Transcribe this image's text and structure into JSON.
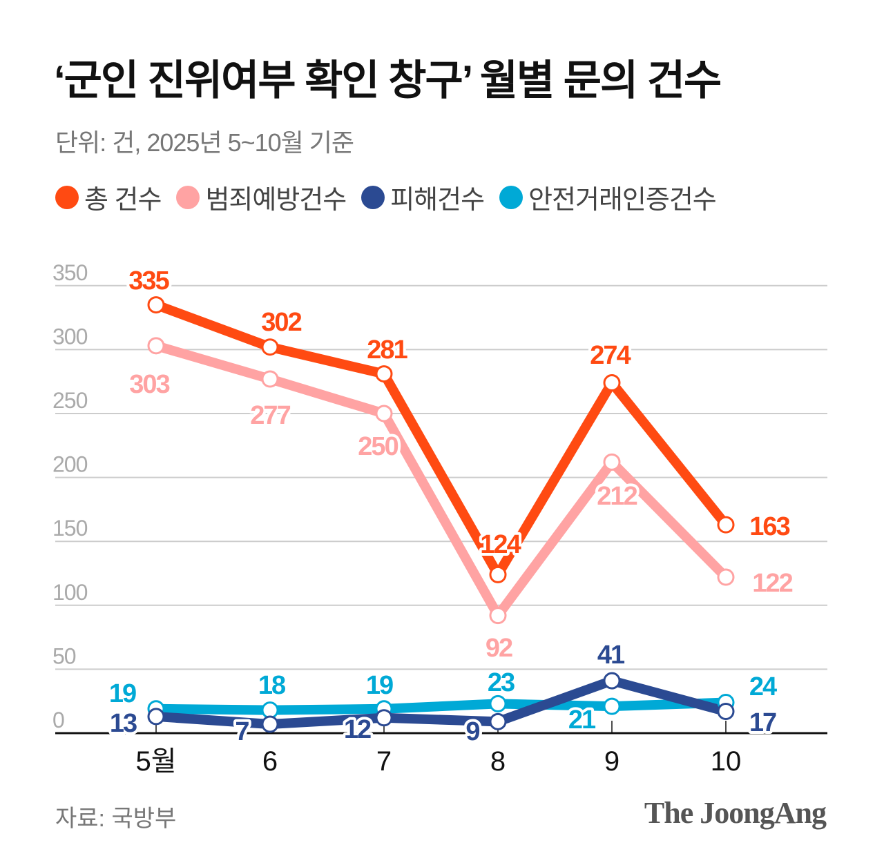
{
  "chart_data": {
    "type": "line",
    "title": "‘군인 진위여부 확인 창구’ 월별 문의 건수",
    "subtitle": "단위: 건, 2025년 5~10월 기준",
    "categories": [
      "5월",
      "6",
      "7",
      "8",
      "9",
      "10"
    ],
    "yticks": [
      "0",
      "50",
      "100",
      "150",
      "200",
      "250",
      "300",
      "350"
    ],
    "ylim": [
      0,
      350
    ],
    "grid": true,
    "legend_position": "top-left",
    "series": [
      {
        "name": "총 건수",
        "color": "#ff4a12",
        "values": [
          335,
          302,
          281,
          124,
          274,
          163
        ]
      },
      {
        "name": "범죄예방건수",
        "color": "#ffa3a3",
        "values": [
          303,
          277,
          250,
          92,
          212,
          122
        ]
      },
      {
        "name": "피해건수",
        "color": "#2b4a92",
        "values": [
          13,
          7,
          12,
          9,
          41,
          17
        ]
      },
      {
        "name": "안전거래인증건수",
        "color": "#00a9d6",
        "values": [
          19,
          18,
          19,
          23,
          21,
          24
        ]
      }
    ],
    "source": "자료: 국방부",
    "brand": "The JoongAng"
  }
}
